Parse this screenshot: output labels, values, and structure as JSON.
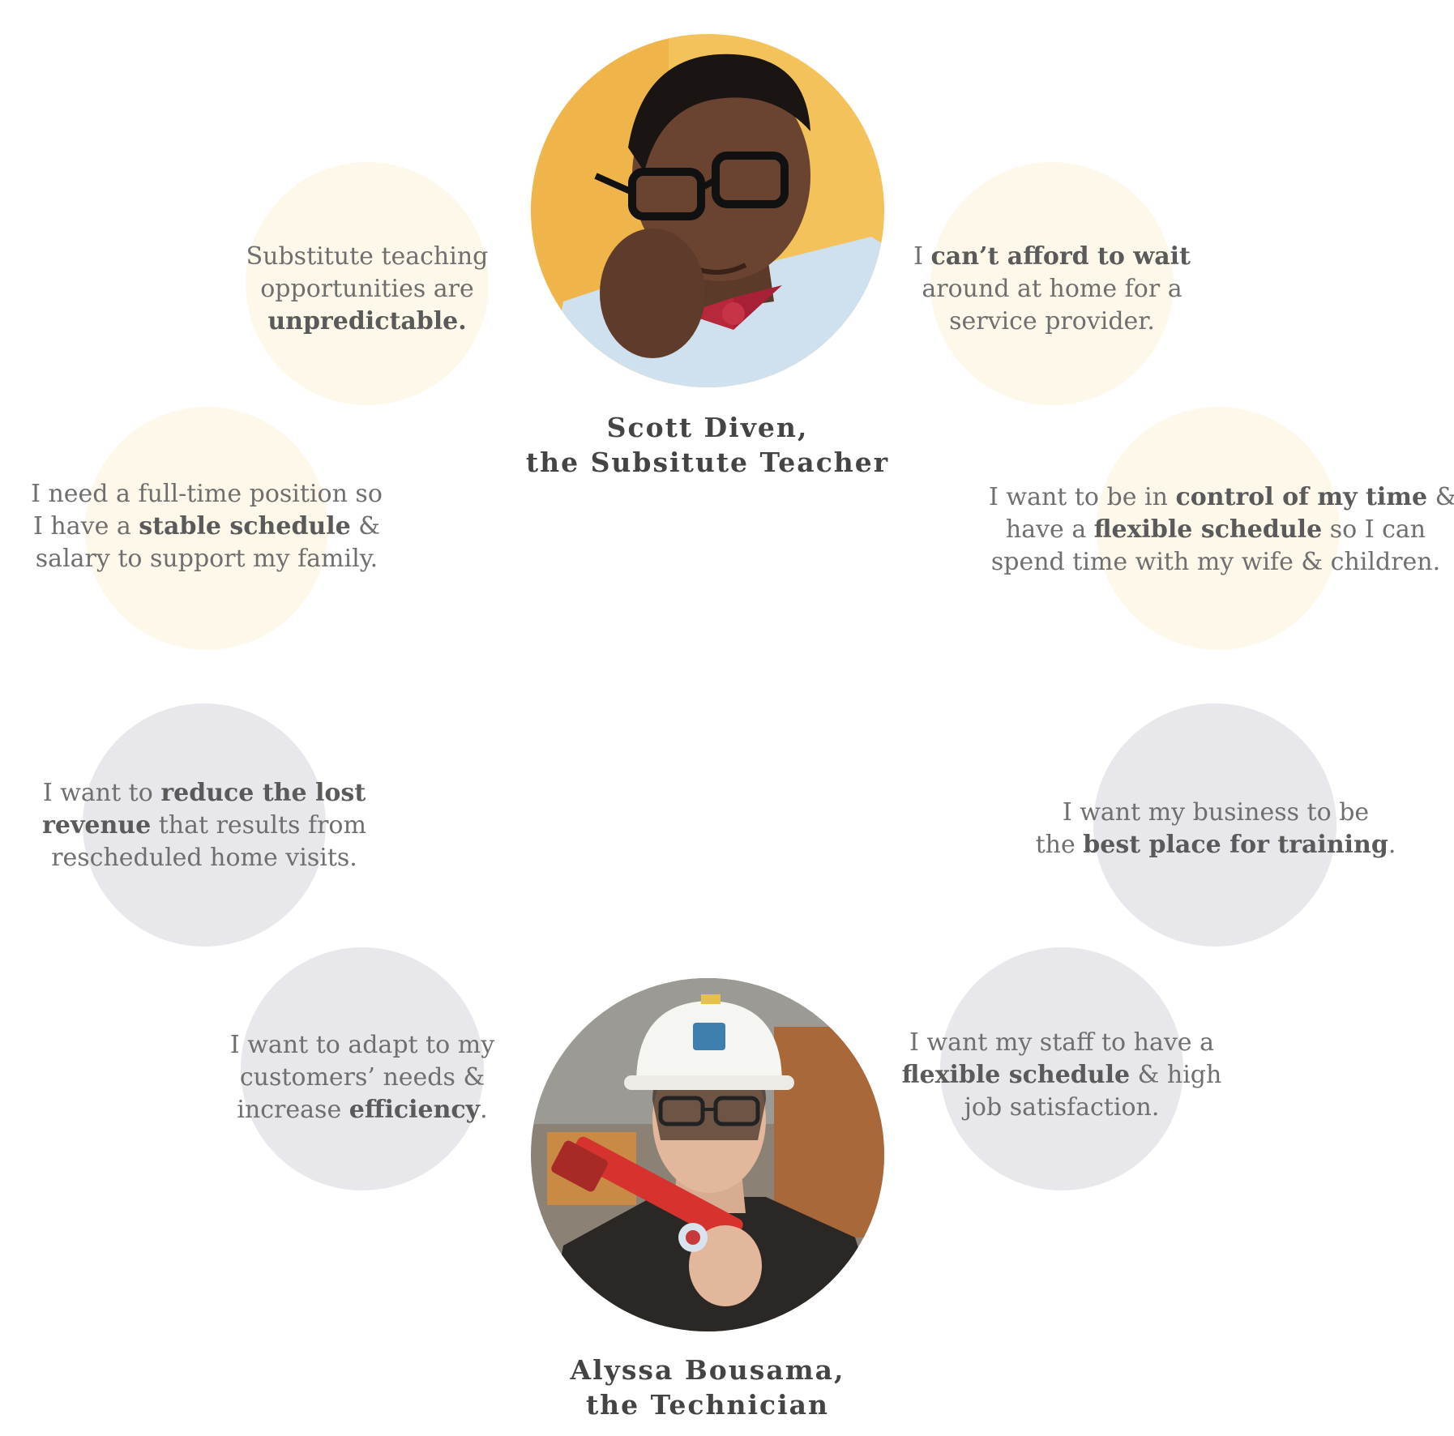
{
  "personas": {
    "teacher": {
      "name": "Scott Diven,",
      "role": "the Subsitute Teacher"
    },
    "technician": {
      "name": "Alyssa Bousama,",
      "role": "the Technician"
    }
  },
  "quotes": {
    "q1": {
      "l1": "Substitute teaching",
      "l2": "opportunities are",
      "l3b": "unpredictable."
    },
    "q2": {
      "l1a": "I ",
      "l1b": "can’t afford to wait",
      "l2": "around at home for a",
      "l3": "service provider."
    },
    "q3": {
      "l1": "I need a full-time position so",
      "l2a": "I have a ",
      "l2b": "stable schedule",
      "l2c": " &",
      "l3": "salary to support my family."
    },
    "q4": {
      "l1a": "I want to be in ",
      "l1b": "control of my time",
      "l1c": " &",
      "l2a": "have a ",
      "l2b": "flexible schedule",
      "l2c": " so I can",
      "l3": "spend time with my wife & children."
    },
    "q5": {
      "l1a": "I want to ",
      "l1b": "reduce the lost",
      "l2b": "revenue",
      "l2c": " that results from",
      "l3": "rescheduled home visits."
    },
    "q6": {
      "l1": "I want my business to be",
      "l2a": "the ",
      "l2b": "best place for training",
      "l2c": "."
    },
    "q7": {
      "l1": "I want to adapt to my",
      "l2": "customers’ needs &",
      "l3a": "increase ",
      "l3b": "efficiency",
      "l3c": "."
    },
    "q8": {
      "l1": "I want my staff to have a",
      "l2b": "flexible schedule",
      "l2c": " & high",
      "l3": "job satisfaction."
    }
  },
  "colors": {
    "teacher_bubble": "#fdf8ea",
    "technician_bubble": "#e7e7ec",
    "text": "#6f6f6f",
    "caption": "#444444"
  }
}
